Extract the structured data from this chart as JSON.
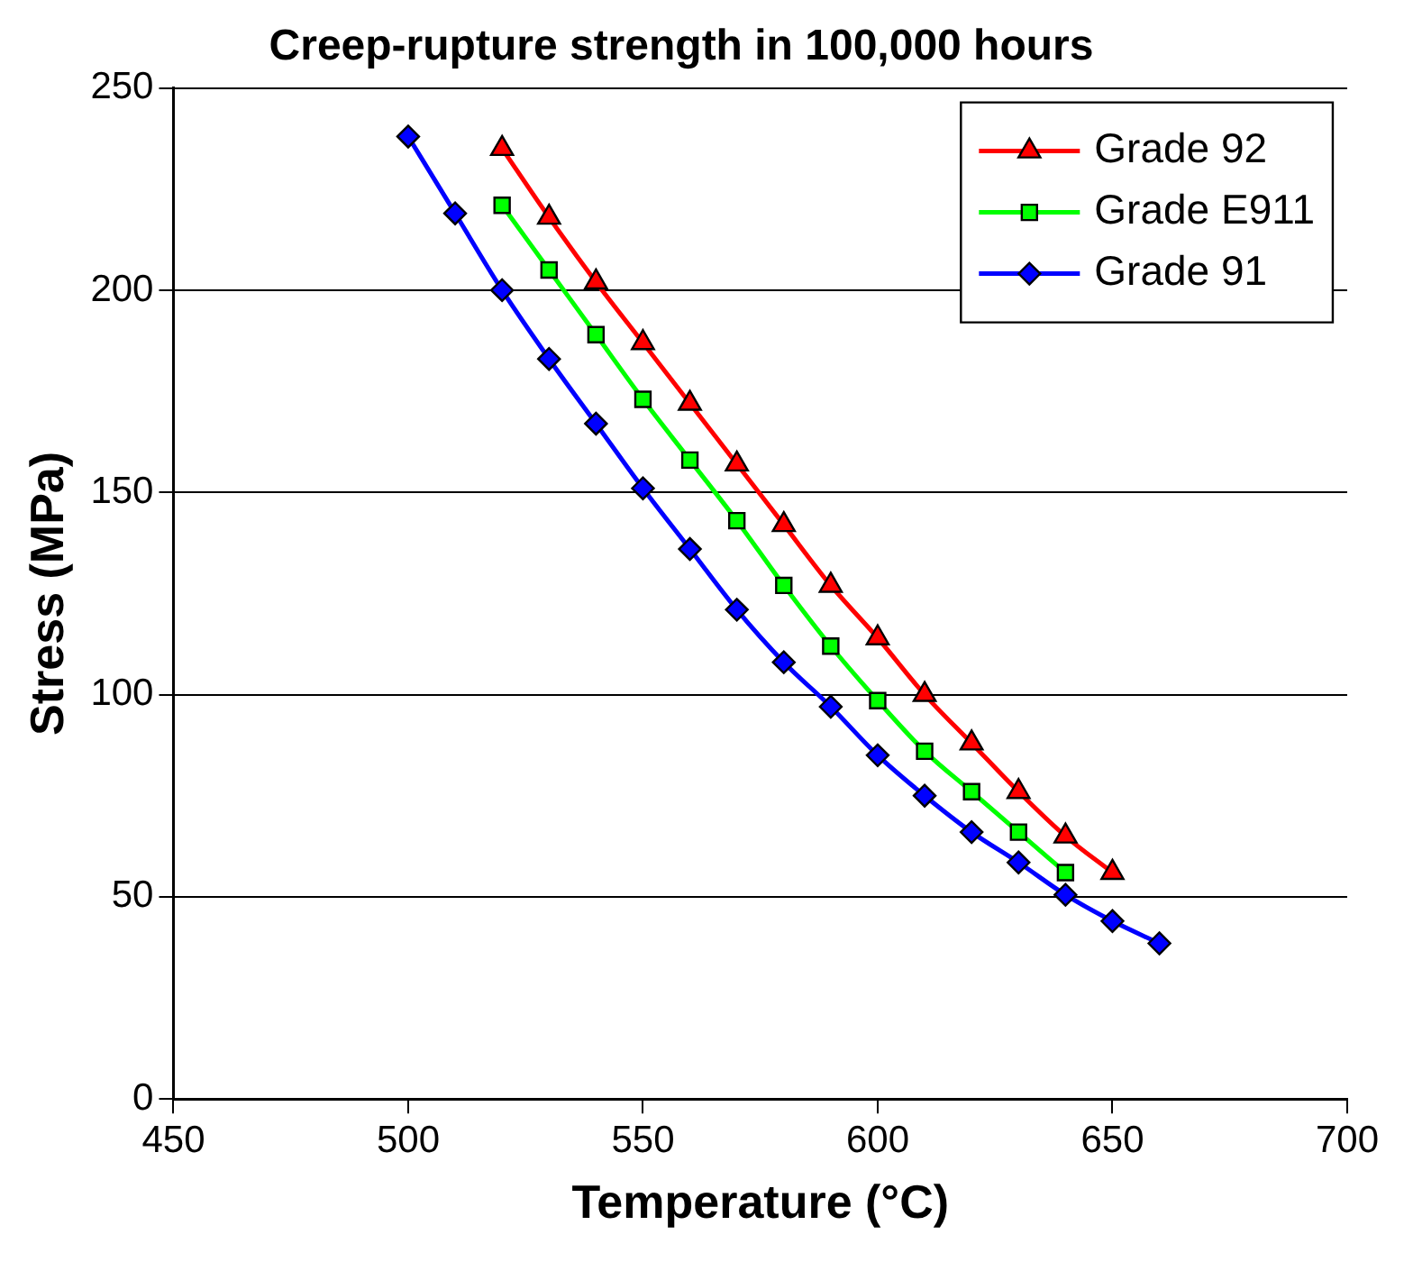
{
  "chart_data": {
    "type": "line",
    "title": "Creep-rupture strength in 100,000 hours",
    "xlabel": "Temperature (°C)",
    "ylabel": "Stress (MPa)",
    "xlim": [
      450,
      700
    ],
    "xticks": [
      450,
      500,
      550,
      600,
      650,
      700
    ],
    "ylim": [
      0,
      250
    ],
    "yticks": [
      0,
      50,
      100,
      150,
      200,
      250
    ],
    "grid": "y",
    "legend": "top right",
    "series": [
      {
        "name": "Grade 92",
        "color": "#ff0000",
        "marker": "triangle",
        "x": [
          520,
          530,
          540,
          550,
          560,
          570,
          580,
          590,
          600,
          610,
          620,
          630,
          640,
          650
        ],
        "values": [
          235,
          218,
          202,
          187,
          172,
          157,
          142,
          127,
          114,
          100,
          88,
          76,
          65,
          56
        ]
      },
      {
        "name": "Grade E911",
        "color": "#00ff00",
        "marker": "square",
        "x": [
          520,
          530,
          540,
          550,
          560,
          570,
          580,
          590,
          600,
          610,
          620,
          630,
          640
        ],
        "values": [
          221,
          205,
          189,
          173,
          158,
          143,
          127,
          112,
          98.5,
          86,
          76,
          66,
          56
        ]
      },
      {
        "name": "Grade 91",
        "color": "#0000ff",
        "marker": "diamond",
        "x": [
          500,
          510,
          520,
          530,
          540,
          550,
          560,
          570,
          580,
          590,
          600,
          610,
          620,
          630,
          640,
          650,
          660
        ],
        "values": [
          238,
          219,
          200,
          183,
          167,
          151,
          136,
          121,
          108,
          97,
          85,
          75,
          66,
          58.5,
          50.5,
          44,
          38.5
        ]
      }
    ]
  }
}
